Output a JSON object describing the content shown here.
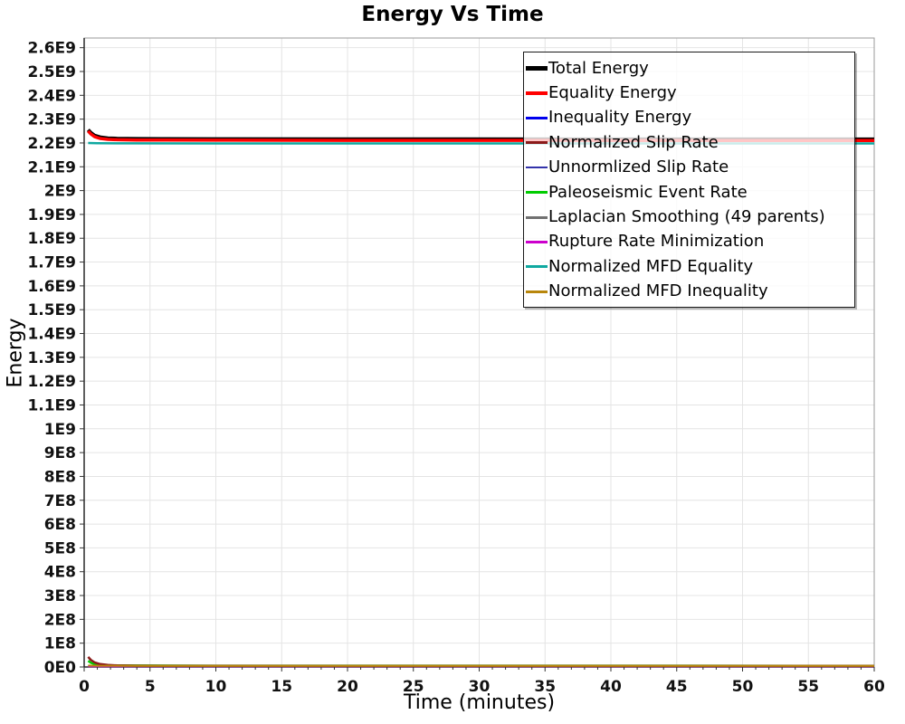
{
  "chart_data": {
    "type": "line",
    "title": "Energy Vs Time",
    "xlabel": "Time (minutes)",
    "ylabel": "Energy",
    "xlim": [
      0,
      60
    ],
    "ylim": [
      0,
      2600000000.0
    ],
    "grid": true,
    "legend_position": "top-right-inside",
    "xticks": [
      {
        "v": 0,
        "label": "0"
      },
      {
        "v": 5,
        "label": "5"
      },
      {
        "v": 10,
        "label": "10"
      },
      {
        "v": 15,
        "label": "15"
      },
      {
        "v": 20,
        "label": "20"
      },
      {
        "v": 25,
        "label": "25"
      },
      {
        "v": 30,
        "label": "30"
      },
      {
        "v": 35,
        "label": "35"
      },
      {
        "v": 40,
        "label": "40"
      },
      {
        "v": 45,
        "label": "45"
      },
      {
        "v": 50,
        "label": "50"
      },
      {
        "v": 55,
        "label": "55"
      },
      {
        "v": 60,
        "label": "60"
      }
    ],
    "yticks": [
      {
        "v": 0,
        "label": "0E0"
      },
      {
        "v": 100000000.0,
        "label": "1E8"
      },
      {
        "v": 200000000.0,
        "label": "2E8"
      },
      {
        "v": 300000000.0,
        "label": "3E8"
      },
      {
        "v": 400000000.0,
        "label": "4E8"
      },
      {
        "v": 500000000.0,
        "label": "5E8"
      },
      {
        "v": 600000000.0,
        "label": "6E8"
      },
      {
        "v": 700000000.0,
        "label": "7E8"
      },
      {
        "v": 800000000.0,
        "label": "8E8"
      },
      {
        "v": 900000000.0,
        "label": "9E8"
      },
      {
        "v": 1000000000.0,
        "label": "1E9"
      },
      {
        "v": 1100000000.0,
        "label": "1.1E9"
      },
      {
        "v": 1200000000.0,
        "label": "1.2E9"
      },
      {
        "v": 1300000000.0,
        "label": "1.3E9"
      },
      {
        "v": 1400000000.0,
        "label": "1.4E9"
      },
      {
        "v": 1500000000.0,
        "label": "1.5E9"
      },
      {
        "v": 1600000000.0,
        "label": "1.6E9"
      },
      {
        "v": 1700000000.0,
        "label": "1.7E9"
      },
      {
        "v": 1800000000.0,
        "label": "1.8E9"
      },
      {
        "v": 1900000000.0,
        "label": "1.9E9"
      },
      {
        "v": 2000000000.0,
        "label": "2E9"
      },
      {
        "v": 2100000000.0,
        "label": "2.1E9"
      },
      {
        "v": 2200000000.0,
        "label": "2.2E9"
      },
      {
        "v": 2300000000.0,
        "label": "2.3E9"
      },
      {
        "v": 2400000000.0,
        "label": "2.4E9"
      },
      {
        "v": 2500000000.0,
        "label": "2.5E9"
      },
      {
        "v": 2600000000.0,
        "label": "2.6E9"
      }
    ],
    "legend": [
      {
        "id": "total-energy",
        "label": "Total Energy",
        "color": "#000000",
        "thickness": 5
      },
      {
        "id": "equality-energy",
        "label": "Equality Energy",
        "color": "#ff0000",
        "thickness": 4
      },
      {
        "id": "inequality-energy",
        "label": "Inequality Energy",
        "color": "#0000ee",
        "thickness": 3
      },
      {
        "id": "normalized-slip-rate",
        "label": "Normalized Slip Rate",
        "color": "#8b1a1a",
        "thickness": 3
      },
      {
        "id": "unnormlized-slip-rate",
        "label": "Unnormlized Slip Rate",
        "color": "#3333aa",
        "thickness": 2
      },
      {
        "id": "paleoseismic-event-rate",
        "label": "Paleoseismic Event Rate",
        "color": "#00cc00",
        "thickness": 3
      },
      {
        "id": "laplacian-smoothing",
        "label": "Laplacian Smoothing (49 parents)",
        "color": "#707070",
        "thickness": 3
      },
      {
        "id": "rupture-rate-minimization",
        "label": "Rupture Rate Minimization",
        "color": "#cc00cc",
        "thickness": 3
      },
      {
        "id": "normalized-mfd-equality",
        "label": "Normalized MFD Equality",
        "color": "#0fa8a0",
        "thickness": 3
      },
      {
        "id": "normalized-mfd-inequality",
        "label": "Normalized MFD Inequality",
        "color": "#b8860b",
        "thickness": 3
      }
    ],
    "series": [
      {
        "id": "inequality-energy",
        "name": "Inequality Energy",
        "color": "#0000ee",
        "width": 2,
        "points": [
          [
            0.3,
            4000000.0
          ],
          [
            2,
            3500000.0
          ],
          [
            60,
            3500000.0
          ]
        ]
      },
      {
        "id": "unnormlized-slip-rate",
        "name": "Unnormlized Slip Rate",
        "color": "#3333aa",
        "width": 1.5,
        "points": [
          [
            0.3,
            3500000.0
          ],
          [
            60,
            3000000.0
          ]
        ]
      },
      {
        "id": "laplacian-smoothing",
        "name": "Laplacian Smoothing (49 parents)",
        "color": "#707070",
        "width": 1.5,
        "points": [
          [
            0.3,
            3000000.0
          ],
          [
            60,
            2500000.0
          ]
        ]
      },
      {
        "id": "rupture-rate-minimization",
        "name": "Rupture Rate Minimization",
        "color": "#cc00cc",
        "width": 1.5,
        "points": [
          [
            0.3,
            2000000.0
          ],
          [
            60,
            2000000.0
          ]
        ]
      },
      {
        "id": "paleoseismic-event-rate",
        "name": "Paleoseismic Event Rate",
        "color": "#00cc00",
        "width": 2.5,
        "points": [
          [
            0.3,
            26000000.0
          ],
          [
            0.5,
            18000000.0
          ],
          [
            0.8,
            12000000.0
          ],
          [
            1.2,
            9000000.0
          ],
          [
            2,
            7000000.0
          ],
          [
            4,
            6000000.0
          ],
          [
            10,
            5500000.0
          ],
          [
            60,
            5000000.0
          ]
        ]
      },
      {
        "id": "normalized-slip-rate",
        "name": "Normalized Slip Rate",
        "color": "#8b1a1a",
        "width": 2.5,
        "points": [
          [
            0.3,
            42000000.0
          ],
          [
            0.5,
            30000000.0
          ],
          [
            0.8,
            19000000.0
          ],
          [
            1.2,
            12000000.0
          ],
          [
            1.8,
            8500000.0
          ],
          [
            2.5,
            6500000.0
          ],
          [
            4,
            5500000.0
          ],
          [
            6,
            5000000.0
          ],
          [
            10,
            4500000.0
          ],
          [
            60,
            4000000.0
          ]
        ]
      },
      {
        "id": "normalized-mfd-inequality",
        "name": "Normalized MFD Inequality",
        "color": "#b8860b",
        "width": 2,
        "points": [
          [
            0.3,
            6000000.0
          ],
          [
            1,
            5500000.0
          ],
          [
            5,
            5000000.0
          ],
          [
            60,
            5000000.0
          ]
        ]
      },
      {
        "id": "normalized-mfd-equality",
        "name": "Normalized MFD Equality",
        "color": "#0fa8a0",
        "width": 2.5,
        "points": [
          [
            0.3,
            2200000000.0
          ],
          [
            1,
            2199000000.0
          ],
          [
            3,
            2198500000.0
          ],
          [
            10,
            2198000000.0
          ],
          [
            60,
            2198000000.0
          ]
        ]
      },
      {
        "id": "total-energy",
        "name": "Total Energy",
        "color": "#000000",
        "width": 4,
        "points": [
          [
            0.3,
            2255000000.0
          ],
          [
            0.5,
            2243000000.0
          ],
          [
            0.8,
            2231000000.0
          ],
          [
            1.2,
            2224000000.0
          ],
          [
            1.8,
            2220000000.0
          ],
          [
            2.5,
            2218500000.0
          ],
          [
            4,
            2217500000.0
          ],
          [
            6,
            2217000000.0
          ],
          [
            10,
            2216500000.0
          ],
          [
            20,
            2216000000.0
          ],
          [
            40,
            2215500000.0
          ],
          [
            60,
            2215500000.0
          ]
        ]
      },
      {
        "id": "equality-energy",
        "name": "Equality Energy",
        "color": "#ff0000",
        "width": 3.5,
        "points": [
          [
            0.3,
            2250000000.0
          ],
          [
            0.5,
            2238000000.0
          ],
          [
            0.8,
            2226000000.0
          ],
          [
            1.2,
            2219000000.0
          ],
          [
            1.8,
            2215000000.0
          ],
          [
            2.5,
            2213500000.0
          ],
          [
            4,
            2212500000.0
          ],
          [
            6,
            2212000000.0
          ],
          [
            10,
            2211500000.0
          ],
          [
            20,
            2211000000.0
          ],
          [
            40,
            2210500000.0
          ],
          [
            60,
            2210500000.0
          ]
        ]
      }
    ],
    "colors": {
      "grid": "#e4e4e4",
      "plot_border": "#9a9a9a",
      "axis_line": "#2a2a2a",
      "tick": "#333333",
      "tick_label": "#111111"
    }
  }
}
